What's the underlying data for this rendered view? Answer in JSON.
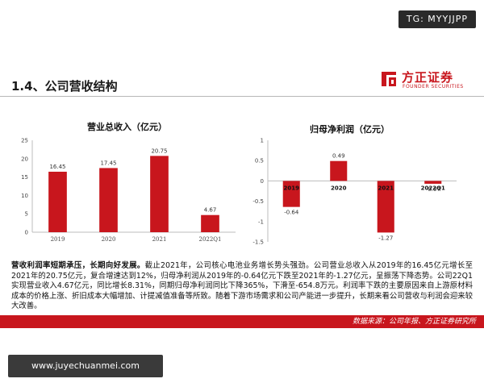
{
  "badge": "TG: MYYJJPP",
  "heading": "1.4、公司营收结构",
  "logo": {
    "cn": "方正证券",
    "en": "FOUNDER SECURITIES",
    "color": "#c8161d"
  },
  "chart_data": [
    {
      "type": "bar",
      "title": "营业总收入（亿元）",
      "categories": [
        "2019",
        "2020",
        "2021",
        "2022Q1"
      ],
      "values": [
        16.45,
        17.45,
        20.75,
        4.67
      ],
      "value_labels": [
        "16.45",
        "17.45",
        "20.75",
        "4.67"
      ],
      "y_ticks": [
        "0",
        "5",
        "10",
        "15",
        "20",
        "25"
      ],
      "ylim": [
        0,
        25
      ],
      "grid": false,
      "bar_color": "#c8161d"
    },
    {
      "type": "bar",
      "title": "归母净利润（亿元）",
      "categories": [
        "2019",
        "2020",
        "2021",
        "2022Q1"
      ],
      "values": [
        -0.64,
        0.49,
        -1.27,
        -0.07
      ],
      "value_labels": [
        "-0.64",
        "0.49",
        "-1.27",
        "-0.07"
      ],
      "y_ticks": [
        "-1.5",
        "-1",
        "-0.5",
        "0",
        "0.5",
        "1"
      ],
      "ylim": [
        -1.5,
        1
      ],
      "grid": false,
      "bar_color": "#c8161d"
    }
  ],
  "description": {
    "lead": "营收利润率短期承压，长期向好发展。",
    "body": "截止2021年，公司核心电池业务增长势头强劲。公司营业总收入从2019年的16.45亿元增长至2021年的20.75亿元，复合增速达到12%，归母净利润从2019年的-0.64亿元下跌至2021年的-1.27亿元，呈振荡下降态势。公司22Q1实现营业收入4.67亿元，同比增长8.31%，同期归母净利润同比下降365%，下滑至-654.8万元。利润率下跌的主要原因来自上游原材料成本的价格上涨、折旧成本大幅增加、计提减值准备等所致。随着下游市场需求和公司产能进一步提升，长期来看公司营收与利润会迎来较大改善。"
  },
  "source": "数据来源：公司年报、方正证券研究所",
  "watermark": "www.juyechuanmei.com"
}
